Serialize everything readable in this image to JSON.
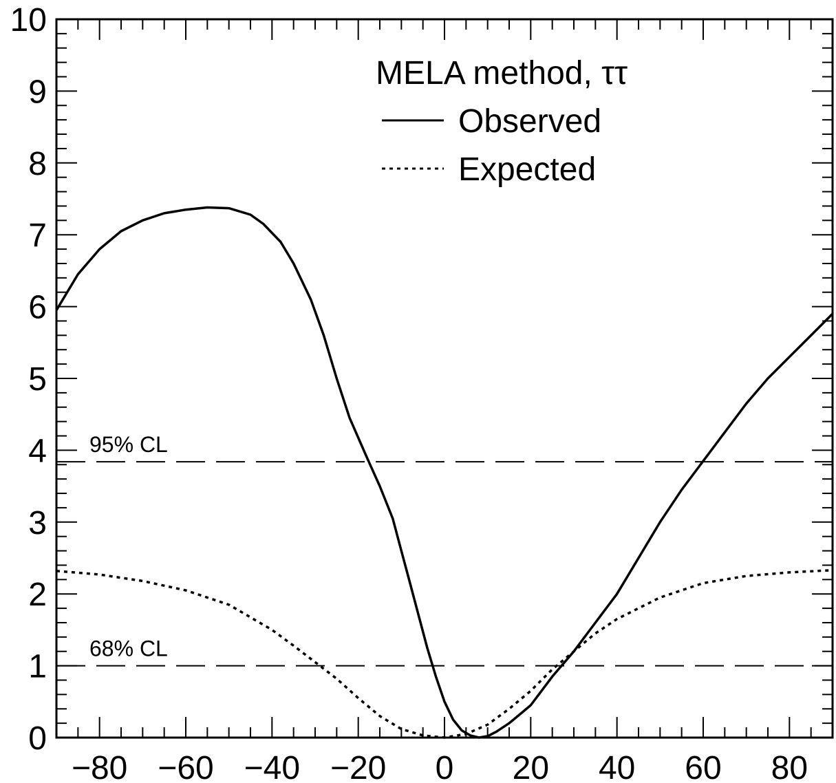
{
  "chart_data": {
    "type": "line",
    "title": "",
    "xlabel": "",
    "ylabel": "",
    "xlim": [
      -90,
      90
    ],
    "ylim": [
      0,
      10
    ],
    "x_ticks": [
      -80,
      -60,
      -40,
      -20,
      0,
      20,
      40,
      60,
      80
    ],
    "x_tick_labels": [
      "−80",
      "−60",
      "−40",
      "−20",
      "0",
      "20",
      "40",
      "60",
      "80"
    ],
    "y_ticks": [
      0,
      1,
      2,
      3,
      4,
      5,
      6,
      7,
      8,
      9,
      10
    ],
    "y_tick_labels": [
      "0",
      "1",
      "2",
      "3",
      "4",
      "5",
      "6",
      "7",
      "8",
      "9",
      "10"
    ],
    "grid": false,
    "legend": {
      "title": "MELA method, ττ",
      "position": "top-right",
      "entries": [
        "Observed",
        "Expected"
      ]
    },
    "series": [
      {
        "name": "Observed",
        "style": "solid",
        "color": "#000000",
        "x": [
          -90,
          -85,
          -80,
          -75,
          -70,
          -65,
          -60,
          -55,
          -50,
          -45,
          -42,
          -38,
          -35,
          -31,
          -28,
          -25,
          -22,
          -18,
          -15,
          -12,
          -10,
          -8,
          -6,
          -4,
          -2,
          0,
          2,
          4,
          6,
          8,
          10,
          12,
          15,
          18,
          20,
          25,
          30,
          35,
          40,
          45,
          50,
          55,
          60,
          65,
          70,
          75,
          80,
          85,
          90
        ],
        "y": [
          5.95,
          6.45,
          6.8,
          7.05,
          7.2,
          7.3,
          7.35,
          7.38,
          7.37,
          7.28,
          7.15,
          6.9,
          6.6,
          6.1,
          5.6,
          5.0,
          4.45,
          3.9,
          3.5,
          3.05,
          2.6,
          2.15,
          1.7,
          1.25,
          0.85,
          0.5,
          0.25,
          0.1,
          0.03,
          0.0,
          0.02,
          0.08,
          0.2,
          0.35,
          0.45,
          0.85,
          1.2,
          1.6,
          2.0,
          2.5,
          3.0,
          3.45,
          3.85,
          4.25,
          4.65,
          5.0,
          5.3,
          5.6,
          5.9
        ]
      },
      {
        "name": "Expected",
        "style": "dotted",
        "color": "#000000",
        "x": [
          -90,
          -80,
          -70,
          -60,
          -50,
          -40,
          -35,
          -30,
          -25,
          -20,
          -15,
          -10,
          -5,
          0,
          5,
          10,
          15,
          20,
          25,
          30,
          35,
          40,
          50,
          60,
          70,
          80,
          90
        ],
        "y": [
          2.32,
          2.27,
          2.18,
          2.05,
          1.85,
          1.5,
          1.28,
          1.05,
          0.82,
          0.55,
          0.3,
          0.12,
          0.03,
          0.0,
          0.05,
          0.18,
          0.4,
          0.65,
          0.95,
          1.2,
          1.45,
          1.65,
          1.95,
          2.15,
          2.25,
          2.3,
          2.33
        ]
      }
    ],
    "reference_lines": [
      {
        "label": "95% CL",
        "y": 3.84,
        "style": "dashed"
      },
      {
        "label": "68% CL",
        "y": 1.0,
        "style": "dashed"
      }
    ]
  }
}
